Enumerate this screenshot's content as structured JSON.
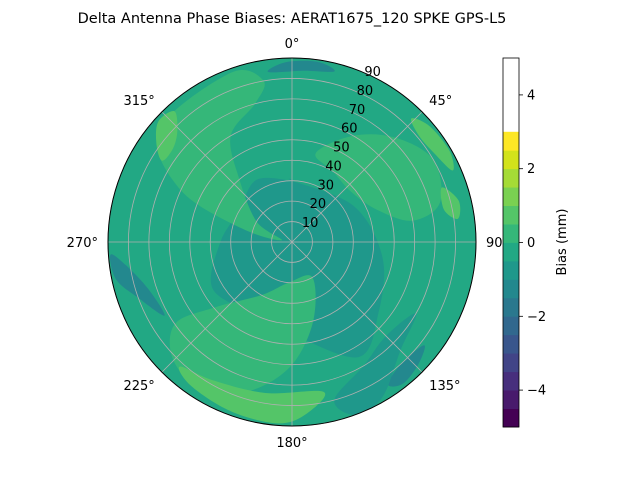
{
  "chart_data": {
    "type": "polar-contour",
    "title": "Delta Antenna Phase Biases: AERAT1675_120   SPKE GPS-L5",
    "theta_zero": "top",
    "theta_direction": "clockwise",
    "theta_ticks": [
      {
        "deg": 0,
        "label": "0°"
      },
      {
        "deg": 45,
        "label": "45°"
      },
      {
        "deg": 90,
        "label": "90°"
      },
      {
        "deg": 135,
        "label": "135°"
      },
      {
        "deg": 180,
        "label": "180°"
      },
      {
        "deg": 225,
        "label": "225°"
      },
      {
        "deg": 270,
        "label": "270°"
      },
      {
        "deg": 315,
        "label": "315°"
      }
    ],
    "r_range": [
      0,
      90
    ],
    "r_ticks": [
      {
        "value": 10,
        "label": "10"
      },
      {
        "value": 20,
        "label": "20"
      },
      {
        "value": 30,
        "label": "30"
      },
      {
        "value": 40,
        "label": "40"
      },
      {
        "value": 50,
        "label": "50"
      },
      {
        "value": 60,
        "label": "60"
      },
      {
        "value": 70,
        "label": "70"
      },
      {
        "value": 80,
        "label": "80"
      },
      {
        "value": 90,
        "label": "90"
      }
    ],
    "grid": true,
    "colormap": "viridis",
    "colorbar": {
      "label": "Bias (mm)",
      "range": [
        -5,
        5
      ],
      "levels": [
        -5,
        -4.5,
        -4,
        -3.5,
        -3,
        -2.5,
        -2,
        -1.5,
        -1,
        -0.5,
        0,
        0.5,
        1,
        1.5,
        2,
        2.5,
        3,
        3.5,
        4,
        4.5,
        5
      ],
      "colors": [
        "#440154",
        "#481a6c",
        "#472f7d",
        "#414487",
        "#39568c",
        "#31688e",
        "#2a788e",
        "#23888e",
        "#1f988b",
        "#22a884",
        "#35b779",
        "#54c568",
        "#7ad151",
        "#a5db36",
        "#d2e21b",
        "#fde725"
      ],
      "ticks": [
        {
          "value": -4,
          "label": "−4"
        },
        {
          "value": -2,
          "label": "−2"
        },
        {
          "value": 0,
          "label": "0"
        },
        {
          "value": 2,
          "label": "2"
        },
        {
          "value": 4,
          "label": "4"
        }
      ]
    },
    "background_level": [
      -0.5,
      0
    ],
    "regions": [
      {
        "level": [
          -1,
          -0.5
        ],
        "points": [
          [
            0,
            30
          ],
          [
            60,
            35
          ],
          [
            100,
            45
          ],
          [
            130,
            55
          ],
          [
            150,
            65
          ],
          [
            180,
            45
          ],
          [
            210,
            40
          ],
          [
            240,
            45
          ],
          [
            270,
            35
          ],
          [
            300,
            30
          ],
          [
            330,
            35
          ],
          [
            360,
            30
          ]
        ]
      },
      {
        "level": [
          0,
          0.5
        ],
        "points": [
          [
            280,
            5
          ],
          [
            300,
            20
          ],
          [
            320,
            40
          ],
          [
            330,
            60
          ],
          [
            345,
            70
          ],
          [
            350,
            80
          ],
          [
            340,
            88
          ],
          [
            310,
            85
          ],
          [
            295,
            60
          ],
          [
            285,
            25
          ]
        ]
      },
      {
        "level": [
          0,
          0.5
        ],
        "points": [
          [
            15,
            45
          ],
          [
            30,
            60
          ],
          [
            45,
            72
          ],
          [
            60,
            80
          ],
          [
            75,
            75
          ],
          [
            80,
            60
          ],
          [
            70,
            45
          ],
          [
            50,
            38
          ],
          [
            30,
            40
          ]
        ]
      },
      {
        "level": [
          0,
          0.5
        ],
        "points": [
          [
            150,
            20
          ],
          [
            165,
            40
          ],
          [
            180,
            60
          ],
          [
            195,
            75
          ],
          [
            210,
            85
          ],
          [
            225,
            82
          ],
          [
            235,
            70
          ],
          [
            230,
            50
          ],
          [
            210,
            30
          ],
          [
            185,
            20
          ]
        ]
      },
      {
        "level": [
          0.5,
          1
        ],
        "points": [
          [
            168,
            75
          ],
          [
            176,
            85
          ],
          [
            185,
            89
          ],
          [
            200,
            88
          ],
          [
            215,
            86
          ],
          [
            222,
            82
          ],
          [
            210,
            78
          ],
          [
            190,
            75
          ]
        ]
      },
      {
        "level": [
          0.5,
          1
        ],
        "points": [
          [
            302,
            75
          ],
          [
            306,
            82
          ],
          [
            312,
            88
          ],
          [
            318,
            86
          ],
          [
            314,
            78
          ],
          [
            308,
            74
          ]
        ]
      },
      {
        "level": [
          0.5,
          1
        ],
        "points": [
          [
            44,
            84
          ],
          [
            50,
            88
          ],
          [
            60,
            89
          ],
          [
            66,
            86
          ],
          [
            58,
            82
          ],
          [
            50,
            81
          ]
        ]
      },
      {
        "level": [
          0.5,
          1
        ],
        "points": [
          [
            70,
            78
          ],
          [
            76,
            84
          ],
          [
            82,
            82
          ],
          [
            78,
            76
          ]
        ]
      },
      {
        "level": [
          -1.5,
          -1
        ],
        "points": [
          [
            240,
            72
          ],
          [
            250,
            80
          ],
          [
            258,
            88
          ],
          [
            266,
            89
          ],
          [
            262,
            82
          ],
          [
            252,
            74
          ]
        ]
      },
      {
        "level": [
          -1.5,
          -1
        ],
        "points": [
          [
            128,
            82
          ],
          [
            134,
            86
          ],
          [
            142,
            88
          ],
          [
            146,
            84
          ],
          [
            138,
            80
          ]
        ]
      },
      {
        "level": [
          -1.5,
          -1
        ],
        "points": [
          [
            352,
            84
          ],
          [
            358,
            88
          ],
          [
            8,
            89
          ],
          [
            14,
            86
          ],
          [
            4,
            84
          ]
        ]
      },
      {
        "level": [
          -1,
          -0.5
        ],
        "points": [
          [
            120,
            70
          ],
          [
            135,
            75
          ],
          [
            150,
            88
          ],
          [
            160,
            90
          ],
          [
            165,
            80
          ],
          [
            150,
            70
          ],
          [
            135,
            65
          ]
        ]
      }
    ]
  }
}
